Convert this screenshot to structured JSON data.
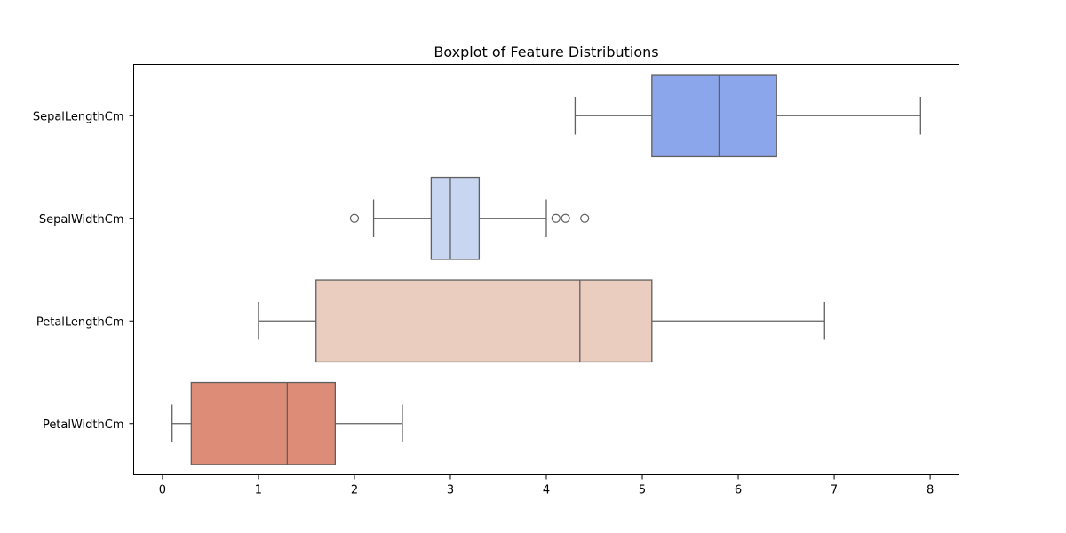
{
  "chart_data": {
    "type": "boxplot",
    "orientation": "horizontal",
    "title": "Boxplot of Feature Distributions",
    "xlabel": "",
    "ylabel": "",
    "xlim": [
      -0.3,
      8.3
    ],
    "xticks": [
      0,
      1,
      2,
      3,
      4,
      5,
      6,
      7,
      8
    ],
    "grid": false,
    "categories": [
      "SepalLengthCm",
      "SepalWidthCm",
      "PetalLengthCm",
      "PetalWidthCm"
    ],
    "series": [
      {
        "category": "SepalLengthCm",
        "whisker_low": 4.3,
        "q1": 5.1,
        "median": 5.8,
        "q3": 6.4,
        "whisker_high": 7.9,
        "outliers": [],
        "color": "#8ba6eb"
      },
      {
        "category": "SepalWidthCm",
        "whisker_low": 2.2,
        "q1": 2.8,
        "median": 3.0,
        "q3": 3.3,
        "whisker_high": 4.0,
        "outliers": [
          2.0,
          4.1,
          4.2,
          4.4
        ],
        "color": "#c8d6f2"
      },
      {
        "category": "PetalLengthCm",
        "whisker_low": 1.0,
        "q1": 1.6,
        "median": 4.35,
        "q3": 5.1,
        "whisker_high": 6.9,
        "outliers": [],
        "color": "#eacdbf"
      },
      {
        "category": "PetalWidthCm",
        "whisker_low": 0.1,
        "q1": 0.3,
        "median": 1.3,
        "q3": 1.8,
        "whisker_high": 2.5,
        "outliers": [],
        "color": "#dd8d77"
      }
    ],
    "stroke_color": "#606060"
  }
}
